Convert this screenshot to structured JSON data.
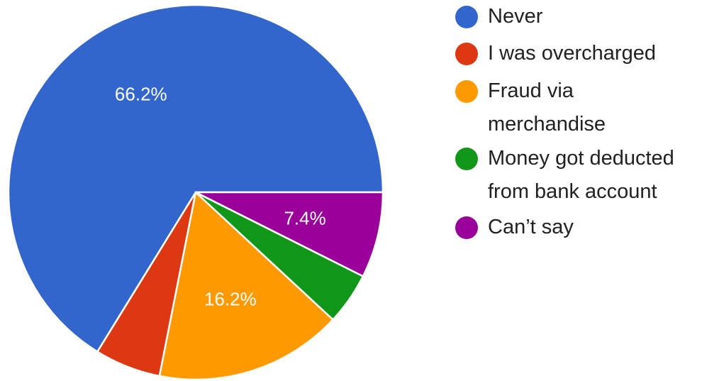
{
  "chart_data": {
    "type": "pie",
    "categories": [
      "Never",
      "I was overcharged",
      "Fraud via merchandise",
      "Money got deducted from bank account",
      "Can’t say"
    ],
    "values": [
      66.2,
      5.7,
      16.2,
      4.5,
      7.4
    ],
    "slice_labels": [
      "66.2%",
      "",
      "16.2%",
      "",
      "7.4%"
    ],
    "colors": [
      "#3366cc",
      "#dc3912",
      "#ff9900",
      "#109618",
      "#990099"
    ],
    "legend_placement": "right",
    "start": "right (3 o'clock), counter-clockwise"
  },
  "legend": {
    "items": [
      {
        "label": "Never",
        "color": "#3366cc"
      },
      {
        "label": "I was overcharged",
        "color": "#dc3912"
      },
      {
        "label": "Fraud via\nmerchandise",
        "color": "#ff9900"
      },
      {
        "label": "Money got deducted\nfrom bank account",
        "color": "#109618"
      },
      {
        "label": "Can’t say",
        "color": "#990099"
      }
    ]
  }
}
